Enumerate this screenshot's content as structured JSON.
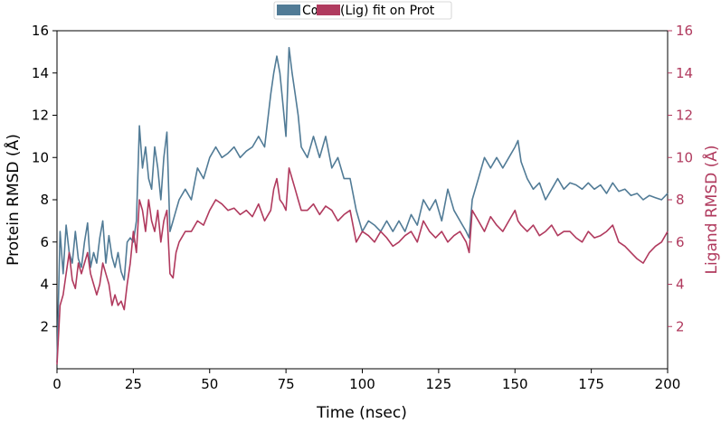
{
  "chart_data": {
    "type": "line",
    "xlabel": "Time (nsec)",
    "ylabel_left": "Protein RMSD (Å)",
    "ylabel_right": "Ligand RMSD (Å)",
    "xlim": [
      0,
      200
    ],
    "ylim_left": [
      0,
      16
    ],
    "ylim_right": [
      0,
      16
    ],
    "x_ticks": [
      0,
      25,
      50,
      75,
      100,
      125,
      150,
      175,
      200
    ],
    "y_ticks_left": [
      2,
      4,
      6,
      8,
      10,
      12,
      14,
      16
    ],
    "y_ticks_right": [
      2,
      4,
      6,
      8,
      10,
      12,
      14,
      16
    ],
    "grid": false,
    "legend_position": "top-center",
    "legend": [
      "Cα",
      "(Lig) fit on Prot"
    ],
    "series": [
      {
        "name": "Cα",
        "axis": "left",
        "color": "#517b96",
        "x": [
          0,
          1,
          2,
          3,
          4,
          5,
          6,
          7,
          8,
          9,
          10,
          11,
          12,
          13,
          14,
          15,
          16,
          17,
          18,
          19,
          20,
          21,
          22,
          23,
          24,
          25,
          26,
          27,
          28,
          29,
          30,
          31,
          32,
          33,
          34,
          35,
          36,
          37,
          38,
          39,
          40,
          42,
          44,
          46,
          48,
          50,
          52,
          54,
          56,
          58,
          60,
          62,
          64,
          66,
          68,
          70,
          71,
          72,
          73,
          74,
          75,
          76,
          77,
          78,
          79,
          80,
          82,
          84,
          86,
          88,
          90,
          92,
          94,
          96,
          98,
          100,
          102,
          104,
          106,
          108,
          110,
          112,
          114,
          116,
          118,
          120,
          122,
          124,
          126,
          128,
          130,
          132,
          134,
          135,
          136,
          138,
          140,
          142,
          144,
          146,
          148,
          150,
          151,
          152,
          154,
          156,
          158,
          160,
          162,
          164,
          166,
          168,
          170,
          172,
          174,
          176,
          178,
          180,
          182,
          184,
          186,
          188,
          190,
          192,
          194,
          196,
          198,
          200
        ],
        "y": [
          0.3,
          6.5,
          4.5,
          6.8,
          5.5,
          5.0,
          6.5,
          5.2,
          4.8,
          6.0,
          6.9,
          4.8,
          5.5,
          5.0,
          6.2,
          7.0,
          5.0,
          6.3,
          5.3,
          4.8,
          5.5,
          4.6,
          4.2,
          6.0,
          6.2,
          6.0,
          7.0,
          11.5,
          9.5,
          10.5,
          9.0,
          8.5,
          10.5,
          9.5,
          8.0,
          10.0,
          11.2,
          6.5,
          7.0,
          7.5,
          8.0,
          8.5,
          8.0,
          9.5,
          9.0,
          10.0,
          10.5,
          10.0,
          10.2,
          10.5,
          10.0,
          10.3,
          10.5,
          11.0,
          10.5,
          13.0,
          14.0,
          14.8,
          14.0,
          12.5,
          11.0,
          15.2,
          14.0,
          13.0,
          12.0,
          10.5,
          10.0,
          11.0,
          10.0,
          11.0,
          9.5,
          10.0,
          9.0,
          9.0,
          7.5,
          6.5,
          7.0,
          6.8,
          6.5,
          7.0,
          6.5,
          7.0,
          6.5,
          7.3,
          6.8,
          8.0,
          7.5,
          8.0,
          7.0,
          8.5,
          7.5,
          7.0,
          6.5,
          6.2,
          8.0,
          9.0,
          10.0,
          9.5,
          10.0,
          9.5,
          10.0,
          10.5,
          10.8,
          9.8,
          9.0,
          8.5,
          8.8,
          8.0,
          8.5,
          9.0,
          8.5,
          8.8,
          8.7,
          8.5,
          8.8,
          8.5,
          8.7,
          8.3,
          8.8,
          8.4,
          8.5,
          8.2,
          8.3,
          8.0,
          8.2,
          8.1,
          8.0,
          8.3
        ]
      },
      {
        "name": "(Lig) fit on Prot",
        "axis": "right",
        "color": "#b03a5e",
        "x": [
          0,
          1,
          2,
          3,
          4,
          5,
          6,
          7,
          8,
          9,
          10,
          11,
          12,
          13,
          14,
          15,
          16,
          17,
          18,
          19,
          20,
          21,
          22,
          23,
          24,
          25,
          26,
          27,
          28,
          29,
          30,
          31,
          32,
          33,
          34,
          35,
          36,
          37,
          38,
          39,
          40,
          42,
          44,
          46,
          48,
          50,
          52,
          54,
          56,
          58,
          60,
          62,
          64,
          66,
          68,
          70,
          71,
          72,
          73,
          74,
          75,
          76,
          77,
          78,
          79,
          80,
          82,
          84,
          86,
          88,
          90,
          92,
          94,
          96,
          98,
          100,
          102,
          104,
          106,
          108,
          110,
          112,
          114,
          116,
          118,
          120,
          122,
          124,
          126,
          128,
          130,
          132,
          134,
          135,
          136,
          138,
          140,
          142,
          144,
          146,
          148,
          150,
          151,
          152,
          154,
          156,
          158,
          160,
          162,
          164,
          166,
          168,
          170,
          172,
          174,
          176,
          178,
          180,
          182,
          184,
          186,
          188,
          190,
          192,
          194,
          196,
          198,
          200
        ],
        "y": [
          0.2,
          3.0,
          3.5,
          4.5,
          5.5,
          4.2,
          3.8,
          5.0,
          4.5,
          5.0,
          5.5,
          4.5,
          4.0,
          3.5,
          4.0,
          5.0,
          4.5,
          4.0,
          3.0,
          3.5,
          3.0,
          3.2,
          2.8,
          4.0,
          5.0,
          6.5,
          5.5,
          8.0,
          7.5,
          6.5,
          8.0,
          7.0,
          6.5,
          7.5,
          6.0,
          7.0,
          7.5,
          4.5,
          4.3,
          5.5,
          6.0,
          6.5,
          6.5,
          7.0,
          6.8,
          7.5,
          8.0,
          7.8,
          7.5,
          7.6,
          7.3,
          7.5,
          7.2,
          7.8,
          7.0,
          7.5,
          8.5,
          9.0,
          8.0,
          7.8,
          7.5,
          9.5,
          9.0,
          8.5,
          8.0,
          7.5,
          7.5,
          7.8,
          7.3,
          7.7,
          7.5,
          7.0,
          7.3,
          7.5,
          6.0,
          6.5,
          6.3,
          6.0,
          6.5,
          6.2,
          5.8,
          6.0,
          6.3,
          6.5,
          6.0,
          7.0,
          6.5,
          6.2,
          6.5,
          6.0,
          6.3,
          6.5,
          6.0,
          5.5,
          7.5,
          7.0,
          6.5,
          7.2,
          6.8,
          6.5,
          7.0,
          7.5,
          7.0,
          6.8,
          6.5,
          6.8,
          6.3,
          6.5,
          6.8,
          6.3,
          6.5,
          6.5,
          6.2,
          6.0,
          6.5,
          6.2,
          6.3,
          6.5,
          6.8,
          6.0,
          5.8,
          5.5,
          5.2,
          5.0,
          5.5,
          5.8,
          6.0,
          6.5
        ]
      }
    ]
  }
}
